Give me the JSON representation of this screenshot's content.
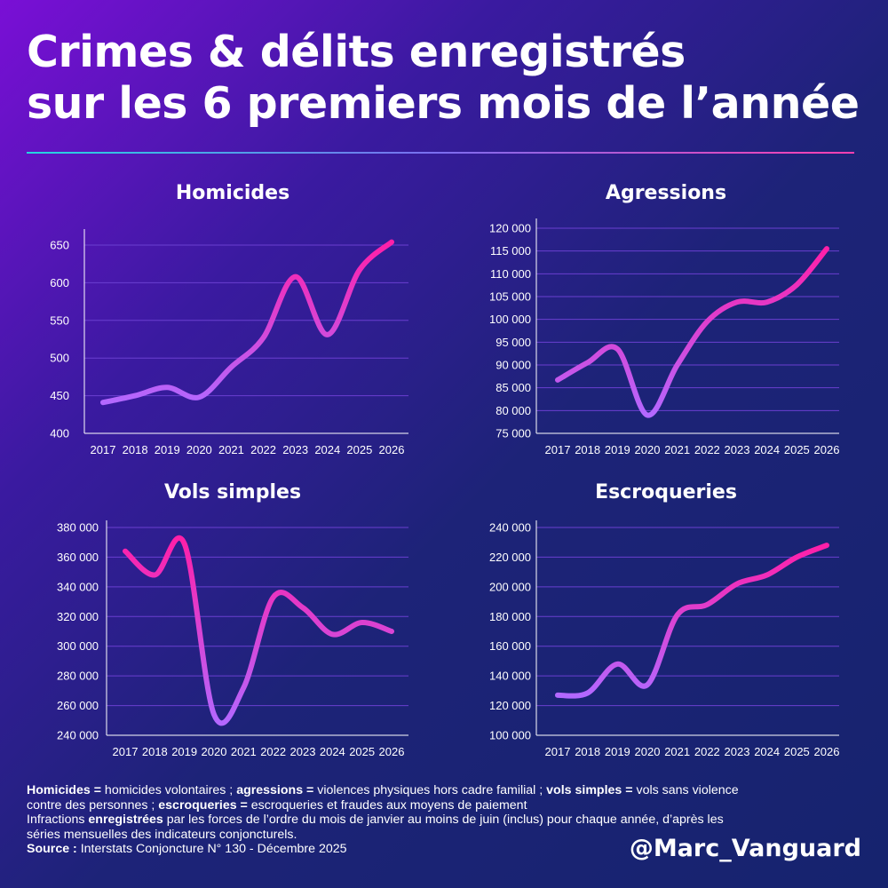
{
  "header": {
    "title_line1": "Crimes & délits enregistrés",
    "title_line2": "sur les 6 premiers mois de l’année"
  },
  "colors": {
    "line_low": "#b368ff",
    "line_high": "#ff1fa8",
    "grid": "#6a3fd0",
    "divider_start": "#24d6e0",
    "divider_end": "#ff3fb0"
  },
  "chart_data": [
    {
      "type": "line",
      "title": "Homicides",
      "x": [
        "2017",
        "2018",
        "2019",
        "2020",
        "2021",
        "2022",
        "2023",
        "2024",
        "2025",
        "2026"
      ],
      "values": [
        441,
        450,
        461,
        448,
        488,
        527,
        608,
        531,
        617,
        654
      ],
      "yticks": [
        400,
        450,
        500,
        550,
        600,
        650
      ],
      "ytick_labels": [
        "400",
        "450",
        "500",
        "550",
        "600",
        "650"
      ],
      "ylim": [
        400,
        650
      ],
      "grid": true,
      "legend": "none"
    },
    {
      "type": "line",
      "title": "Agressions",
      "x": [
        "2017",
        "2018",
        "2019",
        "2020",
        "2021",
        "2022",
        "2023",
        "2024",
        "2025",
        "2026"
      ],
      "values": [
        86700,
        90500,
        93500,
        79000,
        90000,
        99500,
        103800,
        103800,
        107600,
        115500
      ],
      "yticks": [
        75000,
        80000,
        85000,
        90000,
        95000,
        100000,
        105000,
        110000,
        115000,
        120000
      ],
      "ytick_labels": [
        "75 000",
        "80 000",
        "85 000",
        "90 000",
        "95 000",
        "100 000",
        "105 000",
        "110 000",
        "115 000",
        "120 000"
      ],
      "ylim": [
        75000,
        120000
      ],
      "grid": true,
      "legend": "none"
    },
    {
      "type": "line",
      "title": "Vols simples",
      "x": [
        "2017",
        "2018",
        "2019",
        "2020",
        "2021",
        "2022",
        "2023",
        "2024",
        "2025",
        "2026"
      ],
      "values": [
        364000,
        348000,
        369000,
        254000,
        272000,
        333000,
        326000,
        308000,
        316000,
        310000
      ],
      "yticks": [
        240000,
        260000,
        280000,
        300000,
        320000,
        340000,
        360000,
        380000
      ],
      "ytick_labels": [
        "240 000",
        "260 000",
        "280 000",
        "300 000",
        "320 000",
        "340 000",
        "360 000",
        "380 000"
      ],
      "ylim": [
        240000,
        380000
      ],
      "grid": true,
      "legend": "none"
    },
    {
      "type": "line",
      "title": "Escroqueries",
      "x": [
        "2017",
        "2018",
        "2019",
        "2020",
        "2021",
        "2022",
        "2023",
        "2024",
        "2025",
        "2026"
      ],
      "values": [
        127000,
        128500,
        148000,
        134000,
        181000,
        188000,
        202000,
        208000,
        220000,
        228000
      ],
      "yticks": [
        100000,
        120000,
        140000,
        160000,
        180000,
        200000,
        220000,
        240000
      ],
      "ytick_labels": [
        "100 000",
        "120 000",
        "140 000",
        "160 000",
        "180 000",
        "200 000",
        "220 000",
        "240 000"
      ],
      "ylim": [
        100000,
        240000
      ],
      "grid": true,
      "legend": "none"
    }
  ],
  "footer": {
    "line1_b1": "Homicides =",
    "line1_t1": " homicides volontaires ; ",
    "line1_b2": "agressions =",
    "line1_t2": " violences physiques hors cadre familial ; ",
    "line1_b3": "vols simples =",
    "line1_t3": " vols sans violence",
    "line2_t1": "contre des personnes ; ",
    "line2_b1": "escroqueries =",
    "line2_t2": " escroqueries et fraudes aux moyens de paiement",
    "line3_t1": "Infractions ",
    "line3_b1": "enregistrées",
    "line3_t2": " par les forces de l’ordre du mois de janvier au moins de juin (inclus) pour chaque année, d’après les",
    "line4_t1": "séries mensuelles des indicateurs conjoncturels.",
    "line5_b1": "Source :",
    "line5_t1": " Interstats Conjoncture N° 130 - Décembre 2025"
  },
  "handle": "@Marc_Vanguard"
}
